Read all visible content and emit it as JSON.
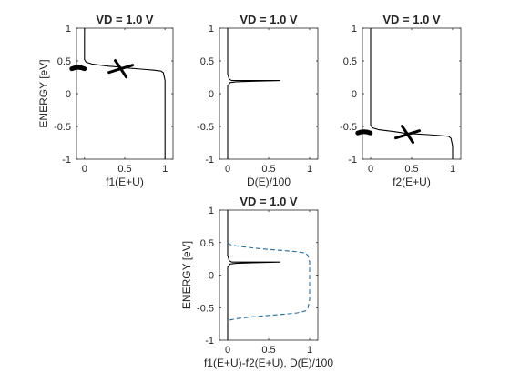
{
  "chart_data": [
    {
      "type": "line",
      "title": "VD = 1.0 V",
      "xlabel": "f1(E+U)",
      "ylabel": "ENERGY  [eV]",
      "xlim": [
        -0.1,
        1.1
      ],
      "ylim": [
        -1,
        1
      ],
      "xticks": [
        0,
        0.5,
        1
      ],
      "xtick_labels": [
        "0",
        "0.5",
        "1"
      ],
      "yticks": [
        -1,
        -0.5,
        0,
        0.5,
        1
      ],
      "ytick_labels": [
        "-1",
        "-0.5",
        "0",
        "0.5",
        "1"
      ],
      "grid": false,
      "series": [
        {
          "style": "solid",
          "color": "#000000",
          "points": [
            [
              0,
              1
            ],
            [
              0,
              0.52
            ],
            [
              0.02,
              0.48
            ],
            [
              0.1,
              0.45
            ],
            [
              0.3,
              0.42
            ],
            [
              0.4,
              0.41
            ],
            [
              0.5,
              0.395
            ],
            [
              0.7,
              0.375
            ],
            [
              0.85,
              0.36
            ],
            [
              0.95,
              0.345
            ],
            [
              0.98,
              0.32
            ],
            [
              1,
              0.2
            ],
            [
              1,
              -1
            ]
          ]
        }
      ],
      "annotations": [
        {
          "shape": "blob",
          "x": -0.08,
          "y": 0.38
        },
        {
          "shape": "cross",
          "x": 0.45,
          "y": 0.38
        }
      ]
    },
    {
      "type": "line",
      "title": "VD = 1.0 V",
      "xlabel": "D(E)/100",
      "ylabel": "",
      "xlim": [
        -0.1,
        1.1
      ],
      "ylim": [
        -1,
        1
      ],
      "xticks": [
        0,
        0.5,
        1
      ],
      "xtick_labels": [
        "0",
        "0.5",
        "1"
      ],
      "yticks": [
        -1,
        -0.5,
        0,
        0.5,
        1
      ],
      "ytick_labels": [
        "-1",
        "-0.5",
        "0",
        "0.5",
        "1"
      ],
      "grid": false,
      "series": [
        {
          "style": "solid",
          "color": "#000000",
          "points": [
            [
              0,
              1
            ],
            [
              0,
              0.3
            ],
            [
              0.02,
              0.22
            ],
            [
              0.05,
              0.2
            ],
            [
              0.1,
              0.2
            ],
            [
              0.2,
              0.2
            ],
            [
              0.3,
              0.2
            ],
            [
              0.45,
              0.2
            ],
            [
              0.64,
              0.2
            ],
            [
              0.3,
              0.19
            ],
            [
              0.1,
              0.18
            ],
            [
              0.03,
              0.17
            ],
            [
              0,
              0.12
            ],
            [
              0,
              -1
            ]
          ]
        }
      ],
      "annotations": []
    },
    {
      "type": "line",
      "title": "VD = 1.0 V",
      "xlabel": "f2(E+U)",
      "ylabel": "",
      "xlim": [
        -0.1,
        1.1
      ],
      "ylim": [
        -1,
        1
      ],
      "xticks": [
        0,
        0.5,
        1
      ],
      "xtick_labels": [
        "0",
        "0.5",
        "1"
      ],
      "yticks": [
        -1,
        -0.5,
        0,
        0.5,
        1
      ],
      "ytick_labels": [
        "-1",
        "-0.5",
        "0",
        "0.5",
        "1"
      ],
      "grid": false,
      "series": [
        {
          "style": "solid",
          "color": "#000000",
          "points": [
            [
              0,
              1
            ],
            [
              0,
              -0.48
            ],
            [
              0.02,
              -0.52
            ],
            [
              0.1,
              -0.55
            ],
            [
              0.3,
              -0.58
            ],
            [
              0.4,
              -0.6
            ],
            [
              0.5,
              -0.61
            ],
            [
              0.7,
              -0.625
            ],
            [
              0.85,
              -0.64
            ],
            [
              0.95,
              -0.65
            ],
            [
              0.98,
              -0.68
            ],
            [
              1,
              -0.8
            ],
            [
              1,
              -1
            ]
          ]
        }
      ],
      "annotations": [
        {
          "shape": "blob",
          "x": -0.08,
          "y": -0.6
        },
        {
          "shape": "cross",
          "x": 0.45,
          "y": -0.62
        }
      ]
    },
    {
      "type": "line",
      "title": "VD = 1.0 V",
      "xlabel": "f1(E+U)-f2(E+U), D(E)/100",
      "ylabel": "ENERGY  [eV]",
      "xlim": [
        -0.1,
        1.1
      ],
      "ylim": [
        -1,
        1
      ],
      "xticks": [
        0,
        0.5,
        1
      ],
      "xtick_labels": [
        "0",
        "0.5",
        "1"
      ],
      "yticks": [
        -1,
        -0.5,
        0,
        0.5,
        1
      ],
      "ytick_labels": [
        "-1",
        "-0.5",
        "0",
        "0.5",
        "1"
      ],
      "grid": false,
      "series": [
        {
          "style": "solid",
          "color": "#000000",
          "points": [
            [
              0,
              1
            ],
            [
              0,
              0.3
            ],
            [
              0.02,
              0.22
            ],
            [
              0.05,
              0.2
            ],
            [
              0.1,
              0.2
            ],
            [
              0.2,
              0.2
            ],
            [
              0.3,
              0.2
            ],
            [
              0.45,
              0.2
            ],
            [
              0.64,
              0.2
            ],
            [
              0.3,
              0.19
            ],
            [
              0.1,
              0.18
            ],
            [
              0.03,
              0.17
            ],
            [
              0,
              0.12
            ],
            [
              0,
              -1
            ]
          ]
        },
        {
          "style": "dashed",
          "color": "#1f6fa8",
          "points": [
            [
              0,
              0.5
            ],
            [
              0.03,
              0.47
            ],
            [
              0.1,
              0.45
            ],
            [
              0.3,
              0.42
            ],
            [
              0.5,
              0.395
            ],
            [
              0.7,
              0.375
            ],
            [
              0.85,
              0.36
            ],
            [
              0.95,
              0.34
            ],
            [
              0.98,
              0.3
            ],
            [
              1,
              0.2
            ],
            [
              1,
              -0.38
            ],
            [
              0.98,
              -0.5
            ],
            [
              0.95,
              -0.55
            ],
            [
              0.85,
              -0.58
            ],
            [
              0.7,
              -0.6
            ],
            [
              0.5,
              -0.62
            ],
            [
              0.3,
              -0.64
            ],
            [
              0.1,
              -0.67
            ],
            [
              0.03,
              -0.69
            ],
            [
              0,
              -0.73
            ]
          ]
        }
      ],
      "annotations": []
    }
  ]
}
